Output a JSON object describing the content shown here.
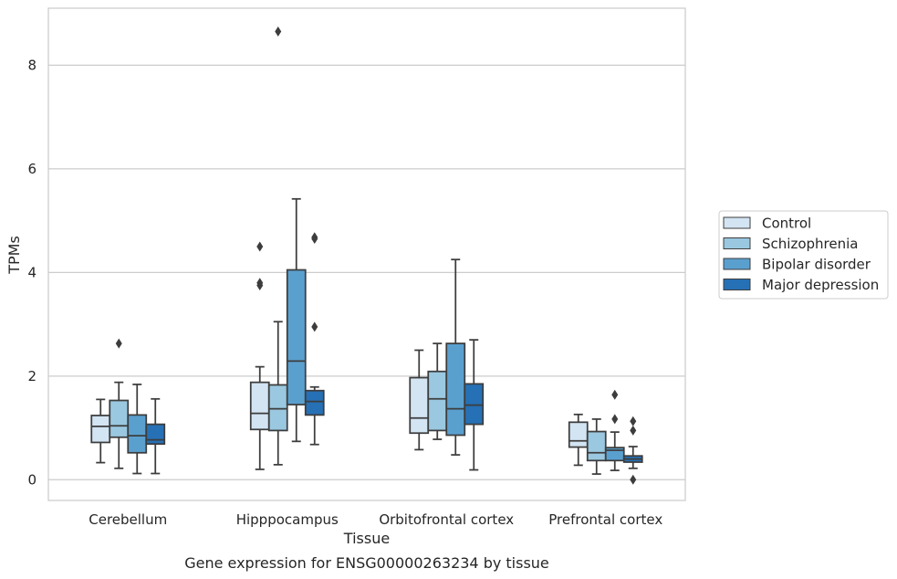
{
  "chart_data": {
    "type": "box",
    "title": "",
    "caption": "Gene expression for ENSG00000263234 by tissue",
    "xlabel": "Tissue",
    "ylabel": "TPMs",
    "ylim": [
      -0.4,
      9.1
    ],
    "yticks": [
      0,
      2,
      4,
      6,
      8
    ],
    "grid": "horizontal",
    "legend_position": "right",
    "categories": [
      "Cerebellum",
      "Hipppocampus",
      "Orbitofrontal cortex",
      "Prefrontal cortex"
    ],
    "series": [
      {
        "name": "Control",
        "color": "#d3e4f3",
        "boxes": [
          {
            "whislo": 0.33,
            "q1": 0.72,
            "med": 1.03,
            "q3": 1.24,
            "whishi": 1.55,
            "fliers": []
          },
          {
            "whislo": 0.2,
            "q1": 0.97,
            "med": 1.28,
            "q3": 1.88,
            "whishi": 2.18,
            "fliers": [
              3.75,
              3.8,
              4.5
            ]
          },
          {
            "whislo": 0.58,
            "q1": 0.9,
            "med": 1.19,
            "q3": 1.97,
            "whishi": 2.5,
            "fliers": []
          },
          {
            "whislo": 0.28,
            "q1": 0.63,
            "med": 0.75,
            "q3": 1.11,
            "whishi": 1.26,
            "fliers": []
          }
        ]
      },
      {
        "name": "Schizophrenia",
        "color": "#9ac8e0",
        "boxes": [
          {
            "whislo": 0.22,
            "q1": 0.82,
            "med": 1.04,
            "q3": 1.53,
            "whishi": 1.88,
            "fliers": [
              2.63
            ]
          },
          {
            "whislo": 0.29,
            "q1": 0.95,
            "med": 1.37,
            "q3": 1.83,
            "whishi": 3.05,
            "fliers": [
              8.65
            ]
          },
          {
            "whislo": 0.78,
            "q1": 0.95,
            "med": 1.56,
            "q3": 2.09,
            "whishi": 2.63,
            "fliers": []
          },
          {
            "whislo": 0.11,
            "q1": 0.37,
            "med": 0.52,
            "q3": 0.93,
            "whishi": 1.17,
            "fliers": []
          }
        ]
      },
      {
        "name": "Bipolar disorder",
        "color": "#5aa0cf",
        "boxes": [
          {
            "whislo": 0.12,
            "q1": 0.52,
            "med": 0.85,
            "q3": 1.25,
            "whishi": 1.84,
            "fliers": []
          },
          {
            "whislo": 0.74,
            "q1": 1.45,
            "med": 2.29,
            "q3": 4.05,
            "whishi": 5.42,
            "fliers": []
          },
          {
            "whislo": 0.48,
            "q1": 0.86,
            "med": 1.37,
            "q3": 2.63,
            "whishi": 4.25,
            "fliers": []
          },
          {
            "whislo": 0.18,
            "q1": 0.37,
            "med": 0.57,
            "q3": 0.62,
            "whishi": 0.92,
            "fliers": [
              1.17,
              1.64
            ]
          }
        ]
      },
      {
        "name": "Major depression",
        "color": "#2670b5",
        "boxes": [
          {
            "whislo": 0.12,
            "q1": 0.69,
            "med": 0.77,
            "q3": 1.07,
            "whishi": 1.56,
            "fliers": []
          },
          {
            "whislo": 0.68,
            "q1": 1.25,
            "med": 1.51,
            "q3": 1.72,
            "whishi": 1.79,
            "fliers": [
              2.95,
              4.65,
              4.68
            ]
          },
          {
            "whislo": 0.19,
            "q1": 1.07,
            "med": 1.44,
            "q3": 1.85,
            "whishi": 2.7,
            "fliers": []
          },
          {
            "whislo": 0.22,
            "q1": 0.34,
            "med": 0.4,
            "q3": 0.46,
            "whishi": 0.64,
            "fliers": [
              0.0,
              0.95,
              1.13
            ]
          }
        ]
      }
    ]
  }
}
